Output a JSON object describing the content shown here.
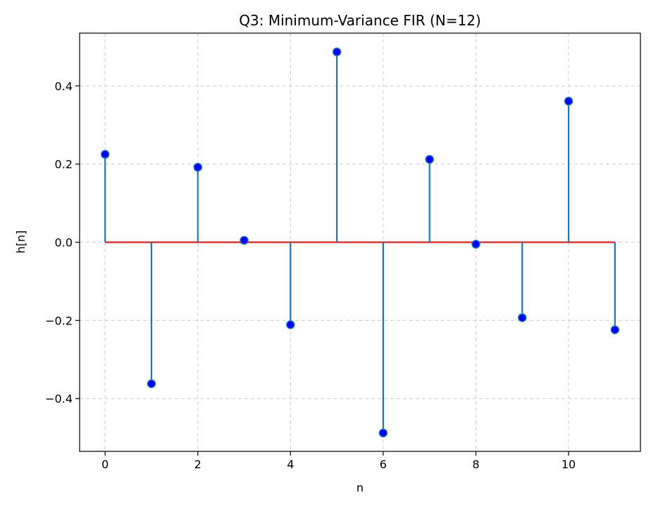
{
  "chart_data": {
    "type": "stem",
    "title": "Q3: Minimum-Variance FIR (N=12)",
    "xlabel": "n",
    "ylabel": "h[n]",
    "x": [
      0,
      1,
      2,
      3,
      4,
      5,
      6,
      7,
      8,
      9,
      10,
      11
    ],
    "values": [
      0.225,
      -0.362,
      0.192,
      0.005,
      -0.211,
      0.487,
      -0.488,
      0.212,
      -0.005,
      -0.193,
      0.361,
      -0.224
    ],
    "xlim": [
      -0.55,
      11.55
    ],
    "ylim": [
      -0.535,
      0.535
    ],
    "xticks": [
      0,
      2,
      4,
      6,
      8,
      10
    ],
    "xtick_labels": [
      "0",
      "2",
      "4",
      "6",
      "8",
      "10"
    ],
    "yticks": [
      -0.4,
      -0.2,
      0.0,
      0.2,
      0.4
    ],
    "ytick_labels": [
      "−0.4",
      "−0.2",
      "0.0",
      "0.2",
      "0.4"
    ],
    "grid": true,
    "baseline": 0,
    "colors": {
      "stem": "#1f77b4",
      "marker_fill": "#0000ff",
      "marker_edge": "#1f77b4",
      "baseline": "#d62728",
      "grid": "#cccccc",
      "axes": "#000000"
    }
  }
}
